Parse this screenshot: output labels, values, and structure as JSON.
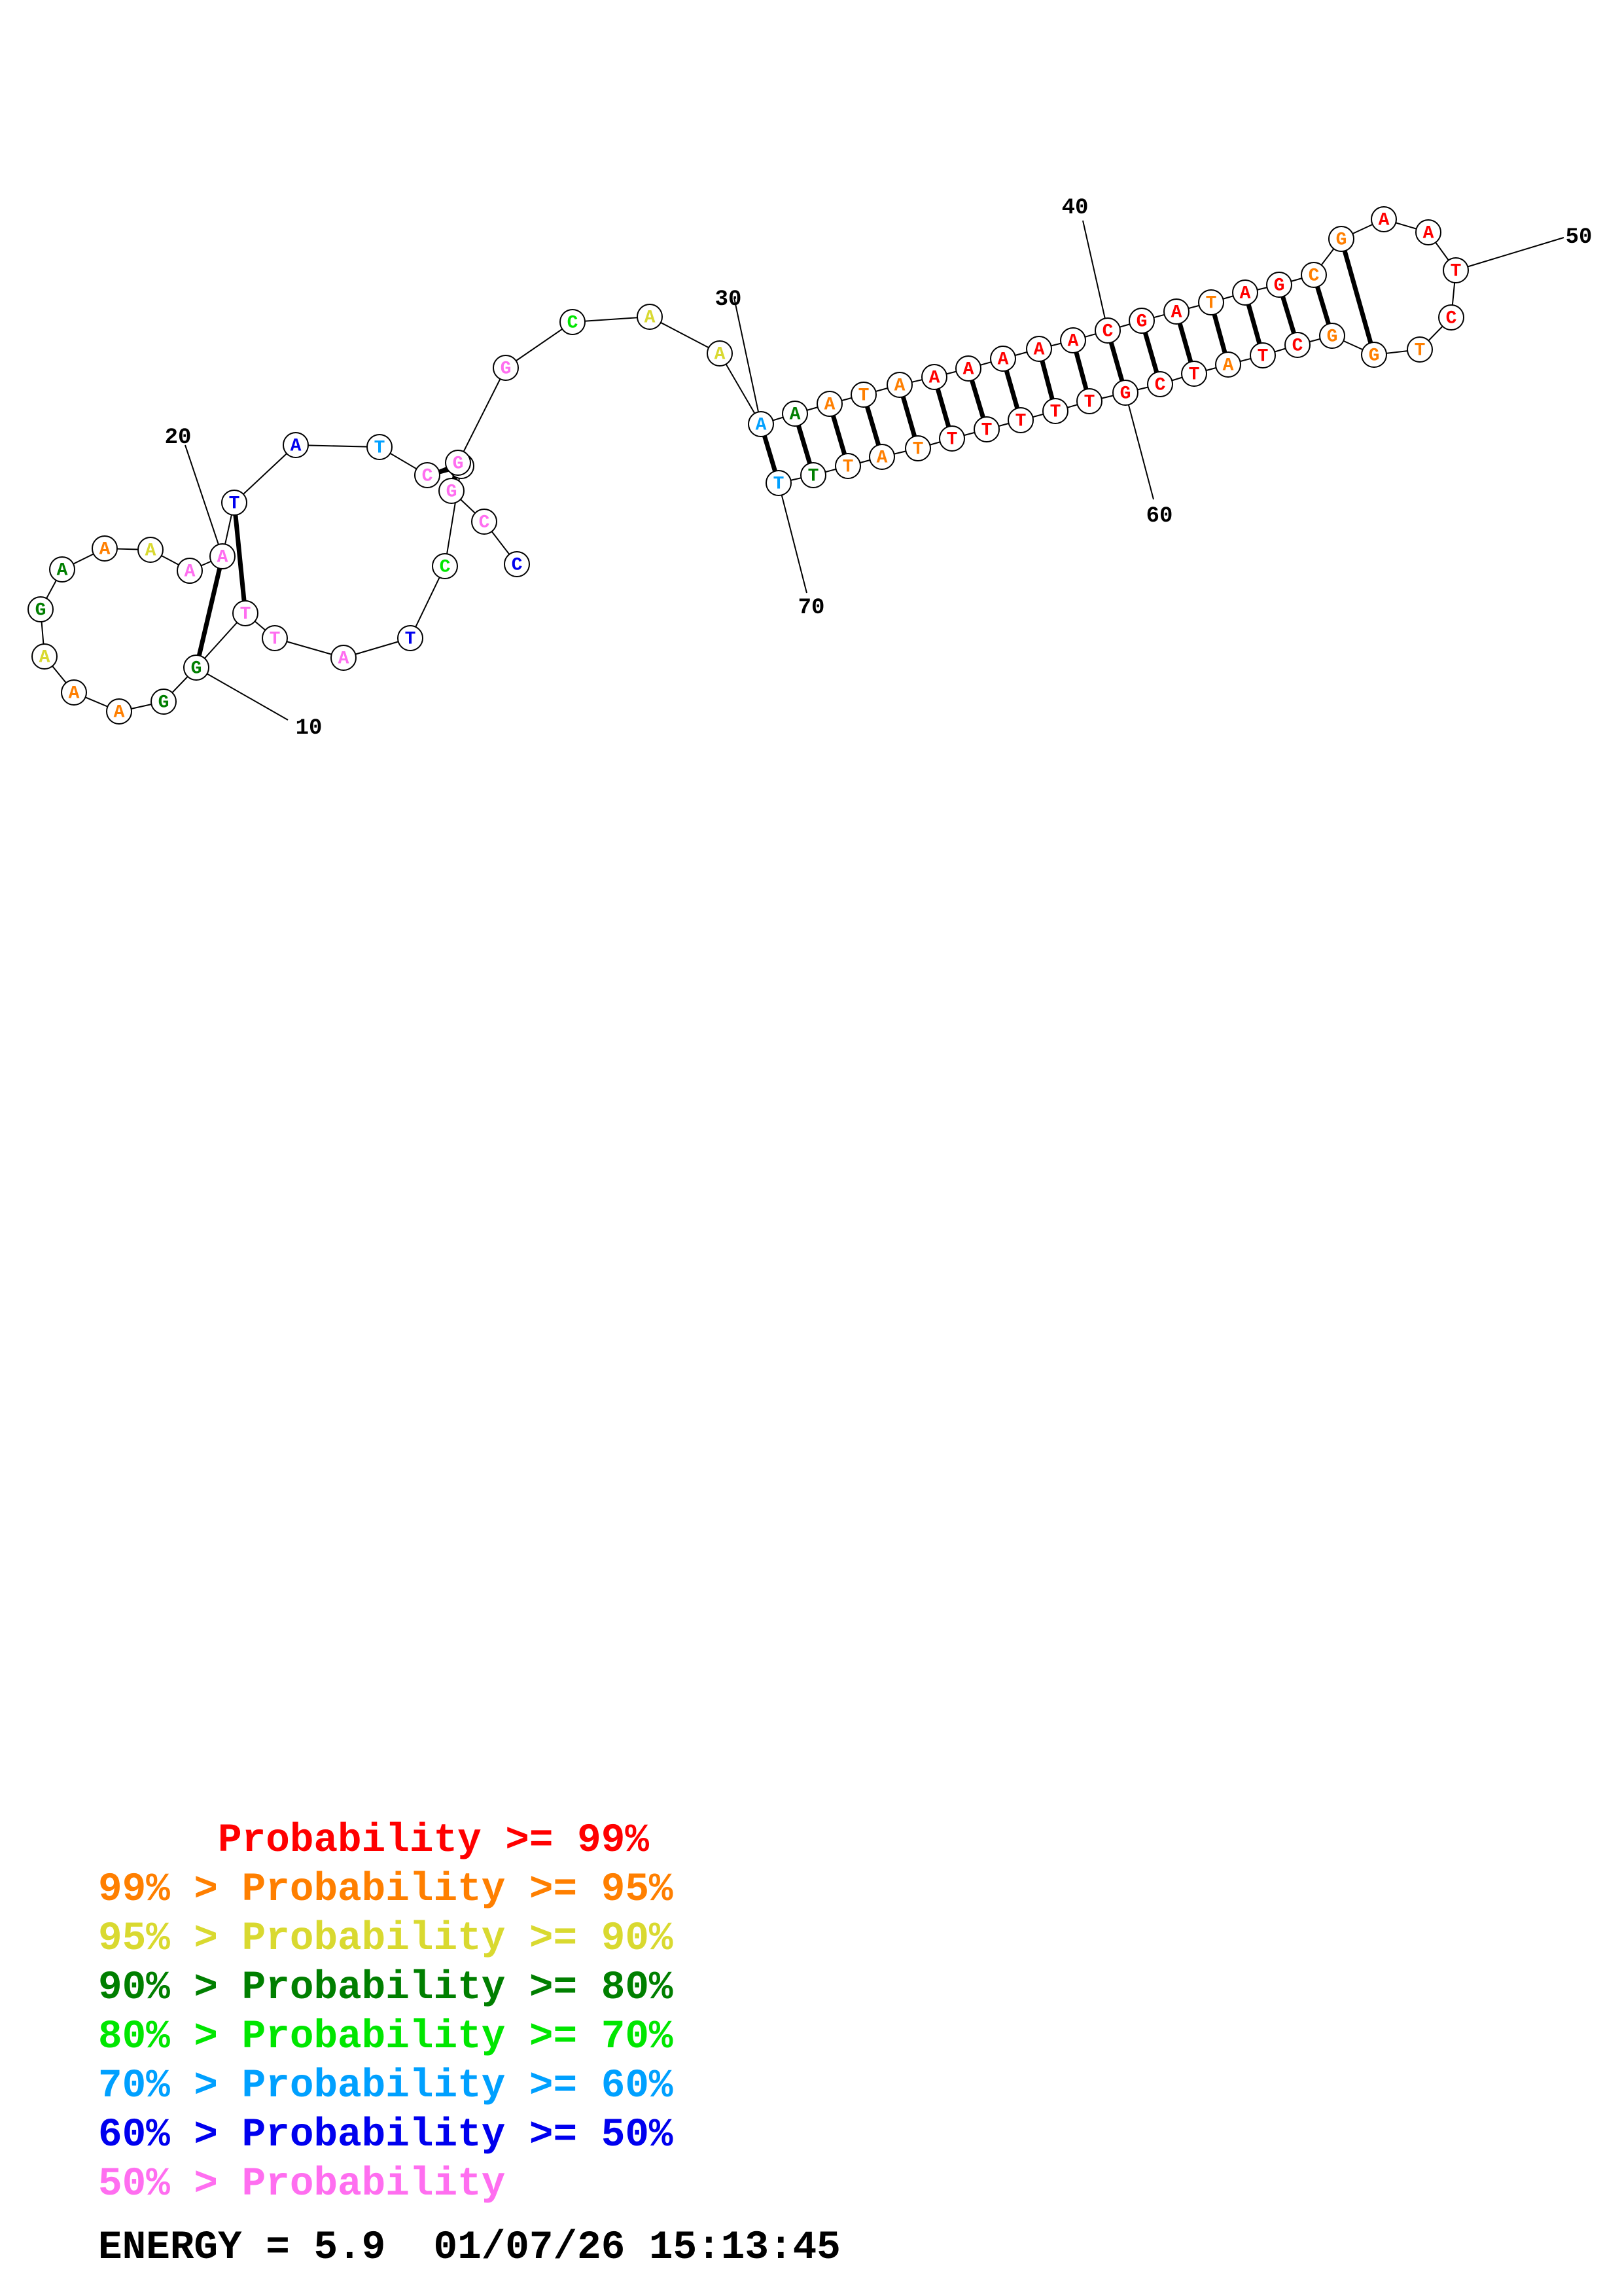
{
  "structure": {
    "nucleotides": [
      {
        "n": 1,
        "base": "C",
        "prob": 6
      },
      {
        "n": 2,
        "base": "C",
        "prob": 7
      },
      {
        "n": 3,
        "base": "G",
        "prob": 7
      },
      {
        "n": 4,
        "base": "G",
        "prob": 5
      },
      {
        "n": 5,
        "base": "C",
        "prob": 4
      },
      {
        "n": 6,
        "base": "T",
        "prob": 6
      },
      {
        "n": 7,
        "base": "A",
        "prob": 7
      },
      {
        "n": 8,
        "base": "T",
        "prob": 7
      },
      {
        "n": 9,
        "base": "T",
        "prob": 7
      },
      {
        "n": 10,
        "base": "G",
        "prob": 3
      },
      {
        "n": 11,
        "base": "G",
        "prob": 3
      },
      {
        "n": 12,
        "base": "A",
        "prob": 1
      },
      {
        "n": 13,
        "base": "A",
        "prob": 1
      },
      {
        "n": 14,
        "base": "A",
        "prob": 2
      },
      {
        "n": 15,
        "base": "G",
        "prob": 3
      },
      {
        "n": 16,
        "base": "A",
        "prob": 3
      },
      {
        "n": 17,
        "base": "A",
        "prob": 1
      },
      {
        "n": 18,
        "base": "A",
        "prob": 2
      },
      {
        "n": 19,
        "base": "A",
        "prob": 7
      },
      {
        "n": 20,
        "base": "A",
        "prob": 7
      },
      {
        "n": 21,
        "base": "T",
        "prob": 6
      },
      {
        "n": 22,
        "base": "A",
        "prob": 6
      },
      {
        "n": 23,
        "base": "T",
        "prob": 5
      },
      {
        "n": 24,
        "base": "C",
        "prob": 7
      },
      {
        "n": 25,
        "base": "G",
        "prob": 7
      },
      {
        "n": 26,
        "base": "G",
        "prob": 7
      },
      {
        "n": 27,
        "base": "C",
        "prob": 4
      },
      {
        "n": 28,
        "base": "A",
        "prob": 2
      },
      {
        "n": 29,
        "base": "A",
        "prob": 2
      },
      {
        "n": 30,
        "base": "A",
        "prob": 5
      },
      {
        "n": 31,
        "base": "A",
        "prob": 3
      },
      {
        "n": 32,
        "base": "A",
        "prob": 1
      },
      {
        "n": 33,
        "base": "T",
        "prob": 1
      },
      {
        "n": 34,
        "base": "A",
        "prob": 1
      },
      {
        "n": 35,
        "base": "A",
        "prob": 0
      },
      {
        "n": 36,
        "base": "A",
        "prob": 0
      },
      {
        "n": 37,
        "base": "A",
        "prob": 0
      },
      {
        "n": 38,
        "base": "A",
        "prob": 0
      },
      {
        "n": 39,
        "base": "A",
        "prob": 0
      },
      {
        "n": 40,
        "base": "C",
        "prob": 0
      },
      {
        "n": 41,
        "base": "G",
        "prob": 0
      },
      {
        "n": 42,
        "base": "A",
        "prob": 0
      },
      {
        "n": 43,
        "base": "T",
        "prob": 1
      },
      {
        "n": 44,
        "base": "A",
        "prob": 0
      },
      {
        "n": 45,
        "base": "G",
        "prob": 0
      },
      {
        "n": 46,
        "base": "C",
        "prob": 1
      },
      {
        "n": 47,
        "base": "G",
        "prob": 1
      },
      {
        "n": 48,
        "base": "A",
        "prob": 0
      },
      {
        "n": 49,
        "base": "A",
        "prob": 0
      },
      {
        "n": 50,
        "base": "T",
        "prob": 0
      },
      {
        "n": 51,
        "base": "C",
        "prob": 0
      },
      {
        "n": 52,
        "base": "T",
        "prob": 1
      },
      {
        "n": 53,
        "base": "G",
        "prob": 1
      },
      {
        "n": 54,
        "base": "G",
        "prob": 1
      },
      {
        "n": 55,
        "base": "C",
        "prob": 0
      },
      {
        "n": 56,
        "base": "T",
        "prob": 0
      },
      {
        "n": 57,
        "base": "A",
        "prob": 1
      },
      {
        "n": 58,
        "base": "T",
        "prob": 0
      },
      {
        "n": 59,
        "base": "C",
        "prob": 0
      },
      {
        "n": 60,
        "base": "G",
        "prob": 0
      },
      {
        "n": 61,
        "base": "T",
        "prob": 0
      },
      {
        "n": 62,
        "base": "T",
        "prob": 0
      },
      {
        "n": 63,
        "base": "T",
        "prob": 0
      },
      {
        "n": 64,
        "base": "T",
        "prob": 0
      },
      {
        "n": 65,
        "base": "T",
        "prob": 0
      },
      {
        "n": 66,
        "base": "T",
        "prob": 1
      },
      {
        "n": 67,
        "base": "A",
        "prob": 1
      },
      {
        "n": 68,
        "base": "T",
        "prob": 1
      },
      {
        "n": 69,
        "base": "T",
        "prob": 3
      },
      {
        "n": 70,
        "base": "T",
        "prob": 5
      }
    ],
    "pairs": [
      [
        9,
        21
      ],
      [
        10,
        20
      ],
      [
        24,
        4
      ],
      [
        25,
        3
      ],
      [
        30,
        70
      ],
      [
        31,
        69
      ],
      [
        32,
        68
      ],
      [
        33,
        67
      ],
      [
        34,
        66
      ],
      [
        35,
        65
      ],
      [
        36,
        64
      ],
      [
        37,
        63
      ],
      [
        38,
        62
      ],
      [
        39,
        61
      ],
      [
        40,
        60
      ],
      [
        41,
        59
      ],
      [
        42,
        58
      ],
      [
        43,
        57
      ],
      [
        44,
        56
      ],
      [
        45,
        55
      ],
      [
        46,
        54
      ],
      [
        47,
        53
      ]
    ],
    "number_labels": [
      {
        "n": 10,
        "text": "10"
      },
      {
        "n": 20,
        "text": "20"
      },
      {
        "n": 30,
        "text": "30"
      },
      {
        "n": 40,
        "text": "40"
      },
      {
        "n": 50,
        "text": "50"
      },
      {
        "n": 60,
        "text": "60"
      },
      {
        "n": 70,
        "text": "70"
      }
    ]
  },
  "colors": {
    "prob_classes": [
      "#ff0000",
      "#ff7f00",
      "#d9d930",
      "#007f00",
      "#00e600",
      "#00a0ff",
      "#0000ee",
      "#ff6ef0"
    ]
  },
  "legend": [
    {
      "text": "     Probability >= 99%",
      "color": "#ff0000"
    },
    {
      "text": "99% > Probability >= 95%",
      "color": "#ff7f00"
    },
    {
      "text": "95% > Probability >= 90%",
      "color": "#d9d930"
    },
    {
      "text": "90% > Probability >= 80%",
      "color": "#007f00"
    },
    {
      "text": "80% > Probability >= 70%",
      "color": "#00e600"
    },
    {
      "text": "70% > Probability >= 60%",
      "color": "#00a0ff"
    },
    {
      "text": "60% > Probability >= 50%",
      "color": "#0000ee"
    },
    {
      "text": "50% > Probability",
      "color": "#ff6ef0"
    }
  ],
  "footer": {
    "text": "ENERGY = 5.9  01/07/26 15:13:45"
  }
}
